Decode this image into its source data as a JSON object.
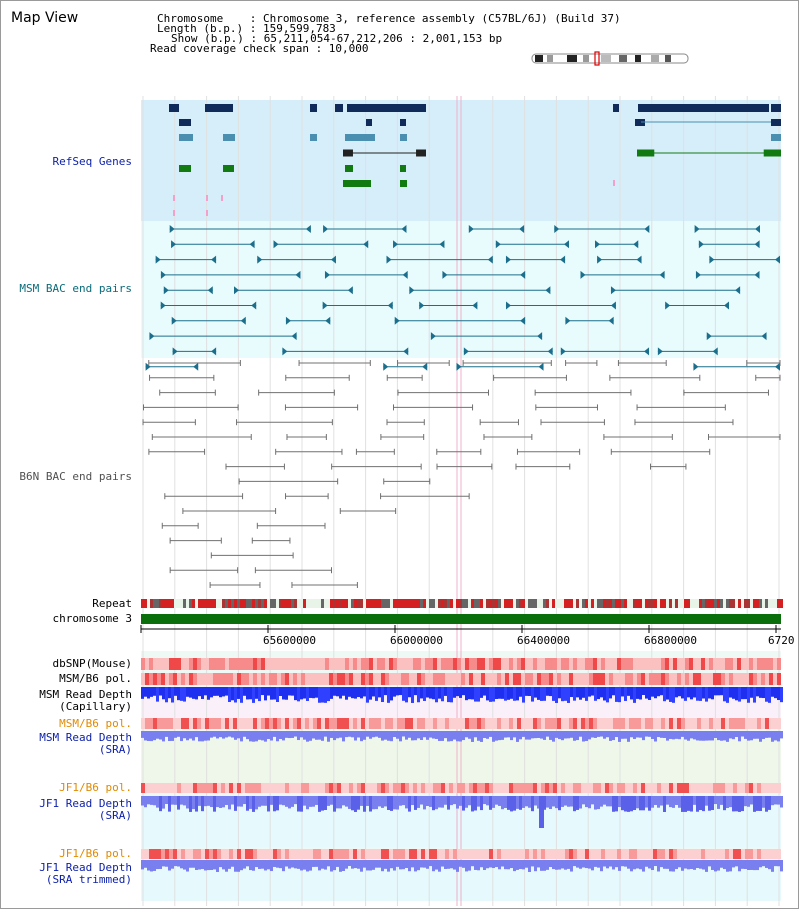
{
  "page": {
    "title": "Map View"
  },
  "info": {
    "chromosome": "Chromosome    : Chromosome 3, reference assembly (C57BL/6J) (Build 37)",
    "length": "Length (b.p.) : 159,599,783",
    "show": "Show (b.p.) : 65,211,054-67,212,206 : 2,001,153 bp",
    "coverage": "Read coverage check span : 10,000"
  },
  "tracks": {
    "refseq": "RefSeq Genes",
    "msm_bac": "MSM BAC end pairs",
    "b6n_bac": "B6N BAC end pairs",
    "repeat": "Repeat",
    "chromosome": "chromosome 3",
    "dbsnp": "dbSNP(Mouse)",
    "msm_pol1": "MSM/B6 pol.",
    "msm_depth_cap_1": "MSM Read Depth",
    "msm_depth_cap_2": "(Capillary)",
    "msm_pol2": "MSM/B6 pol.",
    "msm_depth_sra_1": "MSM Read Depth",
    "msm_depth_sra_2": "(SRA)",
    "jf1_pol1": "JF1/B6 pol.",
    "jf1_depth_sra_1": "JF1 Read Depth",
    "jf1_depth_sra_2": "(SRA)",
    "jf1_pol2": "JF1/B6 pol.",
    "jf1_depth_trim_1": "JF1 Read Depth",
    "jf1_depth_trim_2": "(SRA trimmed)"
  },
  "axis": {
    "ticks": [
      "65600000",
      "66000000",
      "66400000",
      "66800000",
      "6720"
    ]
  },
  "colors": {
    "refseq_bg": "#d6eefa",
    "msm_bg": "#e8fbfd",
    "gene_dark": "#102a5a",
    "gene_mid": "#4a8fb0",
    "gene_green": "#117a11",
    "msm_line": "#1c6f8c",
    "b6n_line": "#707070",
    "chrom_green": "#0a6e0a",
    "depth_blue": "#1f2ff0",
    "depth_light": "#7a7ff0",
    "label_blue": "#0b1fa8",
    "label_teal": "#0a6b7a",
    "label_orange": "#e08a00"
  }
}
